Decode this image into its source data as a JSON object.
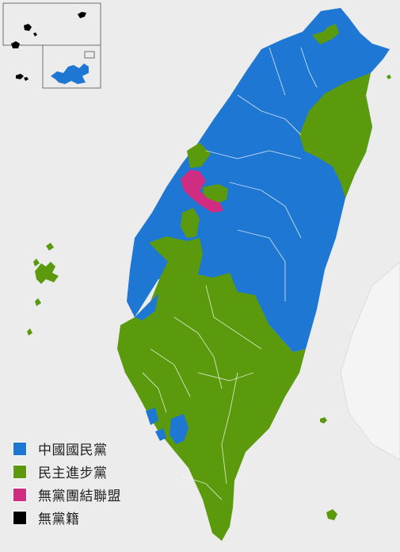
{
  "legend": [
    {
      "label": "中國國民黨",
      "color": "#1f77d4"
    },
    {
      "label": "民主進步黨",
      "color": "#5a9a0c"
    },
    {
      "label": "無黨團結聯盟",
      "color": "#d02c82"
    },
    {
      "label": "無黨籍",
      "color": "#000000"
    }
  ],
  "colors": {
    "kmt": "#1f77d4",
    "dpp": "#5a9a0c",
    "npsu": "#d02c82",
    "independent": "#000000",
    "background": "#ececec"
  }
}
